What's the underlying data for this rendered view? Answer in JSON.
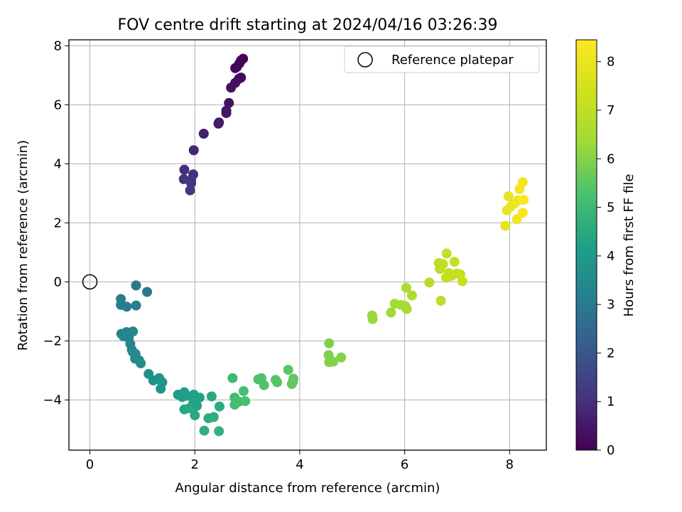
{
  "chart_data": {
    "type": "scatter",
    "title": "FOV centre drift starting at 2024/04/16 03:26:39",
    "xlabel": "Angular distance from reference (arcmin)",
    "ylabel": "Rotation from reference (arcmin)",
    "xlim": [
      -0.4,
      8.7
    ],
    "ylim": [
      -5.7,
      8.2
    ],
    "xticks": [
      0,
      2,
      4,
      6,
      8
    ],
    "yticks": [
      -4,
      -2,
      0,
      2,
      4,
      6,
      8
    ],
    "xtick_labels": [
      "0",
      "2",
      "4",
      "6",
      "8"
    ],
    "ytick_labels": [
      "−4",
      "−2",
      "0",
      "2",
      "4",
      "6",
      "8"
    ],
    "grid": true,
    "colormap": "viridis",
    "colorbar": {
      "label": "Hours from first FF file",
      "range": [
        0,
        8.45
      ],
      "ticks": [
        0,
        1,
        2,
        3,
        4,
        5,
        6,
        7,
        8
      ],
      "tick_labels": [
        "0",
        "1",
        "2",
        "3",
        "4",
        "5",
        "6",
        "7",
        "8"
      ]
    },
    "legend": {
      "position": "top-right",
      "label": "Reference platepar"
    },
    "reference_point": {
      "x": 0,
      "y": 0
    },
    "points": [
      {
        "x": 2.92,
        "y": 7.56,
        "t": 0.02
      },
      {
        "x": 2.88,
        "y": 7.5,
        "t": 0.05
      },
      {
        "x": 2.85,
        "y": 7.4,
        "t": 0.08
      },
      {
        "x": 2.8,
        "y": 7.28,
        "t": 0.11
      },
      {
        "x": 2.77,
        "y": 7.24,
        "t": 0.14
      },
      {
        "x": 2.88,
        "y": 6.92,
        "t": 0.18
      },
      {
        "x": 2.84,
        "y": 6.88,
        "t": 0.21
      },
      {
        "x": 2.77,
        "y": 6.74,
        "t": 0.25
      },
      {
        "x": 2.69,
        "y": 6.58,
        "t": 0.29
      },
      {
        "x": 2.65,
        "y": 6.06,
        "t": 0.36
      },
      {
        "x": 2.6,
        "y": 5.8,
        "t": 0.42
      },
      {
        "x": 2.6,
        "y": 5.72,
        "t": 0.46
      },
      {
        "x": 2.46,
        "y": 5.4,
        "t": 0.52
      },
      {
        "x": 2.45,
        "y": 5.36,
        "t": 0.56
      },
      {
        "x": 2.17,
        "y": 5.02,
        "t": 0.66
      },
      {
        "x": 1.98,
        "y": 4.46,
        "t": 0.8
      },
      {
        "x": 1.8,
        "y": 3.8,
        "t": 0.97
      },
      {
        "x": 1.97,
        "y": 3.64,
        "t": 1.02
      },
      {
        "x": 1.79,
        "y": 3.48,
        "t": 1.07
      },
      {
        "x": 1.93,
        "y": 3.44,
        "t": 1.1
      },
      {
        "x": 1.93,
        "y": 3.34,
        "t": 1.14
      },
      {
        "x": 1.91,
        "y": 3.1,
        "t": 1.2
      },
      {
        "x": 0.88,
        "y": -0.12,
        "t": 2.95
      },
      {
        "x": 1.09,
        "y": -0.34,
        "t": 3.0
      },
      {
        "x": 0.59,
        "y": -0.58,
        "t": 3.05
      },
      {
        "x": 0.59,
        "y": -0.78,
        "t": 3.08
      },
      {
        "x": 0.7,
        "y": -0.84,
        "t": 3.1
      },
      {
        "x": 0.88,
        "y": -0.8,
        "t": 3.12
      },
      {
        "x": 0.6,
        "y": -1.76,
        "t": 3.3
      },
      {
        "x": 0.64,
        "y": -1.84,
        "t": 3.33
      },
      {
        "x": 0.7,
        "y": -1.7,
        "t": 3.35
      },
      {
        "x": 0.74,
        "y": -1.9,
        "t": 3.38
      },
      {
        "x": 0.82,
        "y": -1.68,
        "t": 3.4
      },
      {
        "x": 0.77,
        "y": -2.1,
        "t": 3.43
      },
      {
        "x": 0.8,
        "y": -2.3,
        "t": 3.46
      },
      {
        "x": 0.82,
        "y": -2.38,
        "t": 3.49
      },
      {
        "x": 0.87,
        "y": -2.44,
        "t": 3.52
      },
      {
        "x": 0.86,
        "y": -2.6,
        "t": 3.55
      },
      {
        "x": 0.94,
        "y": -2.66,
        "t": 3.58
      },
      {
        "x": 0.97,
        "y": -2.76,
        "t": 3.61
      },
      {
        "x": 1.12,
        "y": -3.12,
        "t": 3.7
      },
      {
        "x": 1.21,
        "y": -3.34,
        "t": 3.74
      },
      {
        "x": 1.32,
        "y": -3.26,
        "t": 3.78
      },
      {
        "x": 1.38,
        "y": -3.4,
        "t": 3.82
      },
      {
        "x": 1.35,
        "y": -3.62,
        "t": 3.86
      },
      {
        "x": 1.68,
        "y": -3.82,
        "t": 4.0
      },
      {
        "x": 1.76,
        "y": -3.9,
        "t": 4.05
      },
      {
        "x": 1.8,
        "y": -3.74,
        "t": 4.1
      },
      {
        "x": 1.84,
        "y": -3.86,
        "t": 4.14
      },
      {
        "x": 1.98,
        "y": -3.82,
        "t": 4.18
      },
      {
        "x": 2.0,
        "y": -3.94,
        "t": 4.22
      },
      {
        "x": 2.09,
        "y": -3.92,
        "t": 4.26
      },
      {
        "x": 1.97,
        "y": -4.1,
        "t": 4.3
      },
      {
        "x": 2.04,
        "y": -4.2,
        "t": 4.34
      },
      {
        "x": 1.8,
        "y": -4.32,
        "t": 4.38
      },
      {
        "x": 1.9,
        "y": -4.28,
        "t": 4.42
      },
      {
        "x": 2.0,
        "y": -4.52,
        "t": 4.46
      },
      {
        "x": 2.32,
        "y": -3.88,
        "t": 4.5
      },
      {
        "x": 2.47,
        "y": -4.22,
        "t": 4.55
      },
      {
        "x": 2.26,
        "y": -4.62,
        "t": 4.6
      },
      {
        "x": 2.36,
        "y": -4.58,
        "t": 4.64
      },
      {
        "x": 2.18,
        "y": -5.04,
        "t": 4.7
      },
      {
        "x": 2.46,
        "y": -5.06,
        "t": 4.75
      },
      {
        "x": 2.72,
        "y": -3.26,
        "t": 5.0
      },
      {
        "x": 2.76,
        "y": -3.92,
        "t": 5.05
      },
      {
        "x": 2.76,
        "y": -4.16,
        "t": 5.1
      },
      {
        "x": 2.84,
        "y": -4.06,
        "t": 5.14
      },
      {
        "x": 2.93,
        "y": -3.7,
        "t": 5.18
      },
      {
        "x": 2.96,
        "y": -4.04,
        "t": 5.22
      },
      {
        "x": 3.21,
        "y": -3.3,
        "t": 5.3
      },
      {
        "x": 3.27,
        "y": -3.26,
        "t": 5.33
      },
      {
        "x": 3.32,
        "y": -3.5,
        "t": 5.36
      },
      {
        "x": 3.54,
        "y": -3.32,
        "t": 5.4
      },
      {
        "x": 3.57,
        "y": -3.4,
        "t": 5.43
      },
      {
        "x": 3.78,
        "y": -2.98,
        "t": 5.47
      },
      {
        "x": 3.88,
        "y": -3.28,
        "t": 5.5
      },
      {
        "x": 3.87,
        "y": -3.38,
        "t": 5.53
      },
      {
        "x": 3.85,
        "y": -3.46,
        "t": 5.56
      },
      {
        "x": 4.56,
        "y": -2.08,
        "t": 5.9
      },
      {
        "x": 4.55,
        "y": -2.48,
        "t": 5.93
      },
      {
        "x": 4.56,
        "y": -2.72,
        "t": 5.96
      },
      {
        "x": 4.64,
        "y": -2.7,
        "t": 5.99
      },
      {
        "x": 4.79,
        "y": -2.56,
        "t": 6.02
      },
      {
        "x": 5.38,
        "y": -1.14,
        "t": 6.25
      },
      {
        "x": 5.39,
        "y": -1.26,
        "t": 6.28
      },
      {
        "x": 5.74,
        "y": -1.04,
        "t": 6.4
      },
      {
        "x": 5.81,
        "y": -0.74,
        "t": 6.45
      },
      {
        "x": 5.93,
        "y": -0.78,
        "t": 6.48
      },
      {
        "x": 6.01,
        "y": -0.82,
        "t": 6.52
      },
      {
        "x": 6.04,
        "y": -0.92,
        "t": 6.55
      },
      {
        "x": 6.03,
        "y": -0.2,
        "t": 6.6
      },
      {
        "x": 6.14,
        "y": -0.46,
        "t": 6.63
      },
      {
        "x": 6.47,
        "y": -0.02,
        "t": 6.85
      },
      {
        "x": 6.69,
        "y": -0.64,
        "t": 6.9
      },
      {
        "x": 6.65,
        "y": 0.64,
        "t": 6.95
      },
      {
        "x": 6.67,
        "y": 0.44,
        "t": 6.98
      },
      {
        "x": 6.73,
        "y": 0.6,
        "t": 7.01
      },
      {
        "x": 6.8,
        "y": 0.96,
        "t": 7.04
      },
      {
        "x": 6.84,
        "y": 0.3,
        "t": 7.07
      },
      {
        "x": 6.79,
        "y": 0.14,
        "t": 7.1
      },
      {
        "x": 6.89,
        "y": 0.2,
        "t": 7.12
      },
      {
        "x": 6.95,
        "y": 0.68,
        "t": 7.15
      },
      {
        "x": 6.99,
        "y": 0.28,
        "t": 7.18
      },
      {
        "x": 7.06,
        "y": 0.26,
        "t": 7.21
      },
      {
        "x": 7.1,
        "y": 0.02,
        "t": 7.24
      },
      {
        "x": 7.92,
        "y": 1.9,
        "t": 7.9
      },
      {
        "x": 7.95,
        "y": 2.42,
        "t": 7.95
      },
      {
        "x": 7.98,
        "y": 2.9,
        "t": 8.0
      },
      {
        "x": 8.03,
        "y": 2.56,
        "t": 8.05
      },
      {
        "x": 8.1,
        "y": 2.66,
        "t": 8.08
      },
      {
        "x": 8.14,
        "y": 2.12,
        "t": 8.12
      },
      {
        "x": 8.16,
        "y": 2.76,
        "t": 8.16
      },
      {
        "x": 8.19,
        "y": 3.14,
        "t": 8.2
      },
      {
        "x": 8.25,
        "y": 3.38,
        "t": 8.25
      },
      {
        "x": 8.25,
        "y": 2.34,
        "t": 8.3
      },
      {
        "x": 8.27,
        "y": 2.78,
        "t": 8.38
      }
    ]
  }
}
